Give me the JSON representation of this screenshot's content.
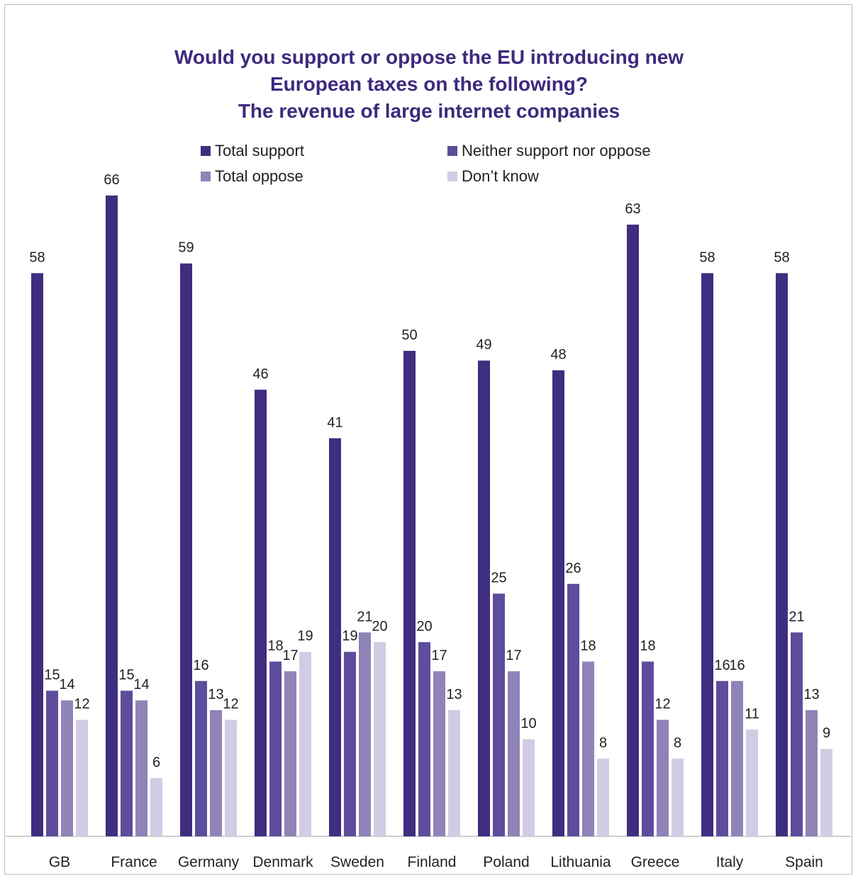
{
  "chart_data": {
    "type": "bar",
    "title_lines": [
      "Would you support or oppose the EU introducing new",
      "European taxes on the following?",
      "The revenue of large internet companies"
    ],
    "categories": [
      "GB",
      "France",
      "Germany",
      "Denmark",
      "Sweden",
      "Finland",
      "Poland",
      "Lithuania",
      "Greece",
      "Italy",
      "Spain"
    ],
    "series": [
      {
        "name": "Total support",
        "color": "#3f2d80",
        "values": [
          58,
          66,
          59,
          46,
          41,
          50,
          49,
          48,
          63,
          58,
          58
        ]
      },
      {
        "name": "Neither support nor oppose",
        "color": "#5d4d9c",
        "values": [
          15,
          15,
          16,
          18,
          19,
          20,
          25,
          26,
          18,
          16,
          21
        ]
      },
      {
        "name": "Total oppose",
        "color": "#8f83b8",
        "values": [
          14,
          14,
          13,
          17,
          21,
          17,
          17,
          18,
          12,
          16,
          13
        ]
      },
      {
        "name": "Don’t know",
        "color": "#d1cce3",
        "values": [
          12,
          6,
          12,
          19,
          20,
          13,
          10,
          8,
          8,
          11,
          9
        ]
      }
    ],
    "legend_position": "top",
    "ylim": [
      0,
      66
    ],
    "grid": false
  }
}
